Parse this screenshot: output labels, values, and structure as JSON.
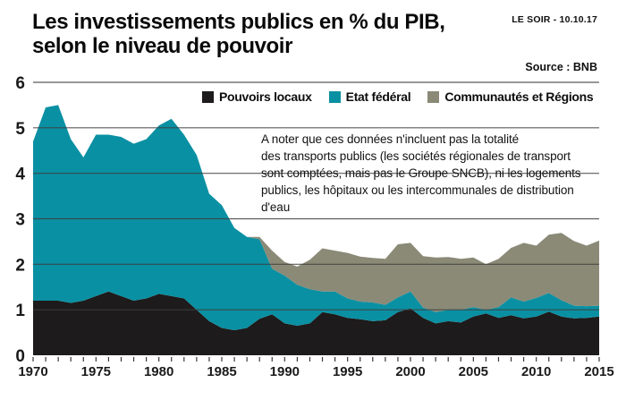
{
  "header": {
    "title_line1": "Les investissements publics en % du PIB,",
    "title_line2": "selon le niveau de pouvoir",
    "publication": "LE SOIR - 10.10.17",
    "source": "Source : BNB"
  },
  "annotation": "A noter que ces données n'incluent pas la totalité\ndes transports publics (les sociétés régionales de transport\nsont comptées, mais pas le Groupe SNCB), ni les logements\npublics, les hôpitaux ou les intercommunales de distribution\nd'eau",
  "chart_data": {
    "type": "area",
    "stacked": true,
    "title": "Les investissements publics en % du PIB, selon le niveau de pouvoir",
    "xlabel": "",
    "ylabel": "% du PIB",
    "ylim": [
      0,
      6
    ],
    "yticks": [
      0,
      1,
      2,
      3,
      4,
      5,
      6
    ],
    "grid": true,
    "legend_position": "top",
    "x": [
      1970,
      1971,
      1972,
      1973,
      1974,
      1975,
      1976,
      1977,
      1978,
      1979,
      1980,
      1981,
      1982,
      1983,
      1984,
      1985,
      1986,
      1987,
      1988,
      1989,
      1990,
      1991,
      1992,
      1993,
      1994,
      1995,
      1996,
      1997,
      1998,
      1999,
      2000,
      2001,
      2002,
      2003,
      2004,
      2005,
      2006,
      2007,
      2008,
      2009,
      2010,
      2011,
      2012,
      2013,
      2014,
      2015
    ],
    "xticks_labeled": [
      1970,
      1975,
      1980,
      1985,
      1990,
      1995,
      2000,
      2005,
      2010,
      2015
    ],
    "series": [
      {
        "id": "pouvoirs-locaux",
        "name": "Pouvoirs locaux",
        "color": "#1d1b1b",
        "values": [
          1.2,
          1.2,
          1.2,
          1.15,
          1.2,
          1.3,
          1.4,
          1.3,
          1.2,
          1.25,
          1.35,
          1.3,
          1.25,
          1.0,
          0.75,
          0.6,
          0.55,
          0.6,
          0.8,
          0.9,
          0.7,
          0.65,
          0.7,
          0.95,
          0.9,
          0.82,
          0.79,
          0.75,
          0.77,
          0.95,
          1.03,
          0.82,
          0.7,
          0.75,
          0.72,
          0.85,
          0.92,
          0.82,
          0.88,
          0.81,
          0.85,
          0.96,
          0.85,
          0.81,
          0.82,
          0.85
        ]
      },
      {
        "id": "etat-federal",
        "name": "Etat fédéral",
        "color": "#0a90a3",
        "values": [
          3.5,
          4.25,
          4.3,
          3.6,
          3.15,
          3.55,
          3.45,
          3.5,
          3.45,
          3.5,
          3.7,
          3.9,
          3.6,
          3.4,
          2.8,
          2.7,
          2.25,
          2.0,
          1.75,
          1.0,
          1.05,
          0.9,
          0.75,
          0.45,
          0.5,
          0.43,
          0.39,
          0.41,
          0.34,
          0.32,
          0.37,
          0.23,
          0.25,
          0.25,
          0.28,
          0.21,
          0.08,
          0.24,
          0.39,
          0.37,
          0.41,
          0.41,
          0.36,
          0.28,
          0.26,
          0.24
        ]
      },
      {
        "id": "communautes-regions",
        "name": "Communautés et Régions",
        "color": "#8a8a77",
        "values": [
          0,
          0,
          0,
          0,
          0,
          0,
          0,
          0,
          0,
          0,
          0,
          0,
          0,
          0,
          0,
          0,
          0,
          0,
          0.05,
          0.4,
          0.3,
          0.4,
          0.65,
          0.95,
          0.9,
          1.0,
          0.99,
          0.98,
          1.01,
          1.17,
          1.07,
          1.13,
          1.2,
          1.16,
          1.12,
          1.09,
          1.0,
          1.06,
          1.09,
          1.29,
          1.15,
          1.28,
          1.48,
          1.42,
          1.33,
          1.43
        ]
      }
    ]
  }
}
